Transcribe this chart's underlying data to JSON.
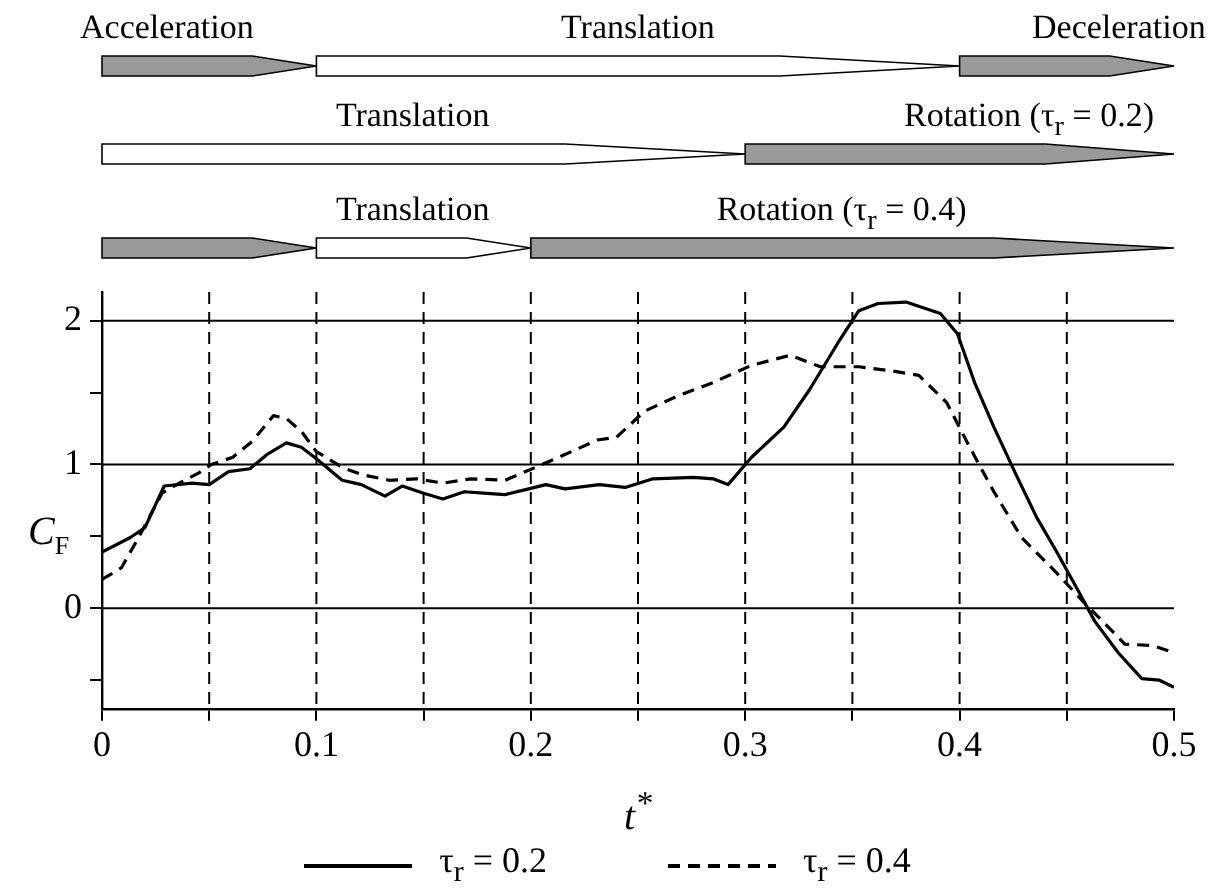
{
  "chart_data": {
    "type": "line",
    "xlabel": "t$^{*}$",
    "ylabel": "C$_{F}$",
    "annotations": [
      "Acceleration",
      "Translation",
      "Deceleration",
      "Translation",
      "Rotation  (τ$_{r}$ = 0.2)",
      "Translation",
      "Rotation  (τ$_{r}$ = 0.4)"
    ],
    "xlim": [
      0,
      0.5
    ],
    "xticks": [
      0,
      {
        "value": 0.05,
        "label": null
      },
      0.1,
      {
        "value": 0.15,
        "label": null
      },
      0.2,
      {
        "value": 0.25,
        "label": null
      },
      0.3,
      {
        "value": 0.35,
        "label": null
      },
      0.4,
      {
        "value": 0.45,
        "label": null
      },
      0.5
    ],
    "ylim": [
      -0.7,
      2.2
    ],
    "yticks": [
      {
        "value": -0.5,
        "label": null
      },
      0,
      {
        "value": 0.5,
        "label": null
      },
      1,
      {
        "value": 1.5,
        "label": null
      },
      2
    ],
    "grid": false,
    "legend": "bottom",
    "marker": "none",
    "ref_lines": [
      {
        "axis": "y",
        "value": 0,
        "line_style": "solid"
      },
      {
        "axis": "y",
        "value": 1,
        "line_style": "solid"
      },
      {
        "axis": "y",
        "value": 2,
        "line_style": "solid"
      },
      {
        "axis": "x",
        "value": 0.05,
        "line_style": "dashed"
      },
      {
        "axis": "x",
        "value": 0.1,
        "line_style": "dashed"
      },
      {
        "axis": "x",
        "value": 0.15,
        "line_style": "dashed"
      },
      {
        "axis": "x",
        "value": 0.2,
        "line_style": "dashed"
      },
      {
        "axis": "x",
        "value": 0.25,
        "line_style": "dashed"
      },
      {
        "axis": "x",
        "value": 0.3,
        "line_style": "dashed"
      },
      {
        "axis": "x",
        "value": 0.35,
        "line_style": "dashed"
      },
      {
        "axis": "x",
        "value": 0.4,
        "line_style": "dashed"
      },
      {
        "axis": "x",
        "value": 0.45,
        "line_style": "dashed"
      }
    ],
    "series": [
      {
        "name": "τ$_{r}$ = 0.2",
        "color": "#000000",
        "line_style": "solid",
        "x": [
          0,
          0.013,
          0.02,
          0.029,
          0.042,
          0.05,
          0.059,
          0.069,
          0.077,
          0.086,
          0.093,
          0.1,
          0.112,
          0.121,
          0.132,
          0.14,
          0.15,
          0.159,
          0.169,
          0.178,
          0.188,
          0.199,
          0.207,
          0.216,
          0.232,
          0.244,
          0.257,
          0.276,
          0.285,
          0.292,
          0.303,
          0.318,
          0.33,
          0.343,
          0.353,
          0.362,
          0.375,
          0.391,
          0.399,
          0.407,
          0.416,
          0.426,
          0.436,
          0.445,
          0.455,
          0.463,
          0.474,
          0.485,
          0.493,
          0.5
        ],
        "values": [
          0.39,
          0.49,
          0.56,
          0.85,
          0.87,
          0.86,
          0.95,
          0.97,
          1.07,
          1.15,
          1.12,
          1.04,
          0.89,
          0.86,
          0.78,
          0.85,
          0.8,
          0.76,
          0.81,
          0.8,
          0.79,
          0.83,
          0.86,
          0.83,
          0.86,
          0.84,
          0.9,
          0.91,
          0.9,
          0.86,
          1.05,
          1.26,
          1.52,
          1.84,
          2.07,
          2.12,
          2.13,
          2.05,
          1.91,
          1.57,
          1.26,
          0.94,
          0.63,
          0.4,
          0.13,
          -0.09,
          -0.31,
          -0.49,
          -0.5,
          -0.55
        ]
      },
      {
        "name": "τ$_{r}$ = 0.4",
        "color": "#000000",
        "line_style": "dashed",
        "x": [
          0,
          0.009,
          0.017,
          0.028,
          0.036,
          0.045,
          0.051,
          0.061,
          0.07,
          0.08,
          0.086,
          0.093,
          0.1,
          0.112,
          0.121,
          0.134,
          0.147,
          0.159,
          0.172,
          0.188,
          0.199,
          0.213,
          0.231,
          0.24,
          0.253,
          0.269,
          0.285,
          0.303,
          0.321,
          0.335,
          0.353,
          0.369,
          0.381,
          0.394,
          0.404,
          0.416,
          0.429,
          0.445,
          0.458,
          0.468,
          0.477,
          0.49,
          0.5
        ],
        "values": [
          0.2,
          0.28,
          0.49,
          0.8,
          0.87,
          0.94,
          1.0,
          1.05,
          1.16,
          1.34,
          1.32,
          1.23,
          1.09,
          0.98,
          0.93,
          0.89,
          0.9,
          0.87,
          0.9,
          0.89,
          0.96,
          1.05,
          1.17,
          1.19,
          1.37,
          1.48,
          1.57,
          1.69,
          1.76,
          1.68,
          1.68,
          1.65,
          1.62,
          1.43,
          1.14,
          0.81,
          0.49,
          0.25,
          0.04,
          -0.11,
          -0.25,
          -0.26,
          -0.31
        ]
      }
    ]
  }
}
